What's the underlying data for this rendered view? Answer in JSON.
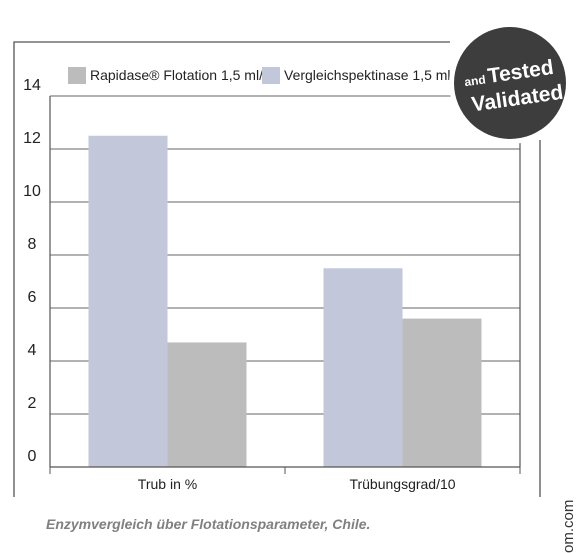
{
  "chart_data": {
    "type": "bar",
    "categories": [
      "Trub in %",
      "Trübungsgrad/10"
    ],
    "series": [
      {
        "name": "Rapidase® Flotation 1,5 ml/hl",
        "color": "#bcbcbd",
        "values": [
          4.7,
          5.6
        ]
      },
      {
        "name": "Vergleichspektinase 1,5 ml/hl",
        "color": "#c3c7da",
        "values": [
          12.5,
          7.5
        ]
      }
    ],
    "yticks": [
      "0",
      "2",
      "4",
      "6",
      "8",
      "10",
      "12",
      "14"
    ],
    "ylim": [
      0,
      14
    ],
    "grid": true,
    "legend_position": "top"
  },
  "caption": "Enzymvergleich über Flotationsparameter, Chile.",
  "side_text": "om.com",
  "badge": {
    "and": "and",
    "tested": "Tested",
    "validated": "Validated",
    "color": "#3d3d3d"
  }
}
